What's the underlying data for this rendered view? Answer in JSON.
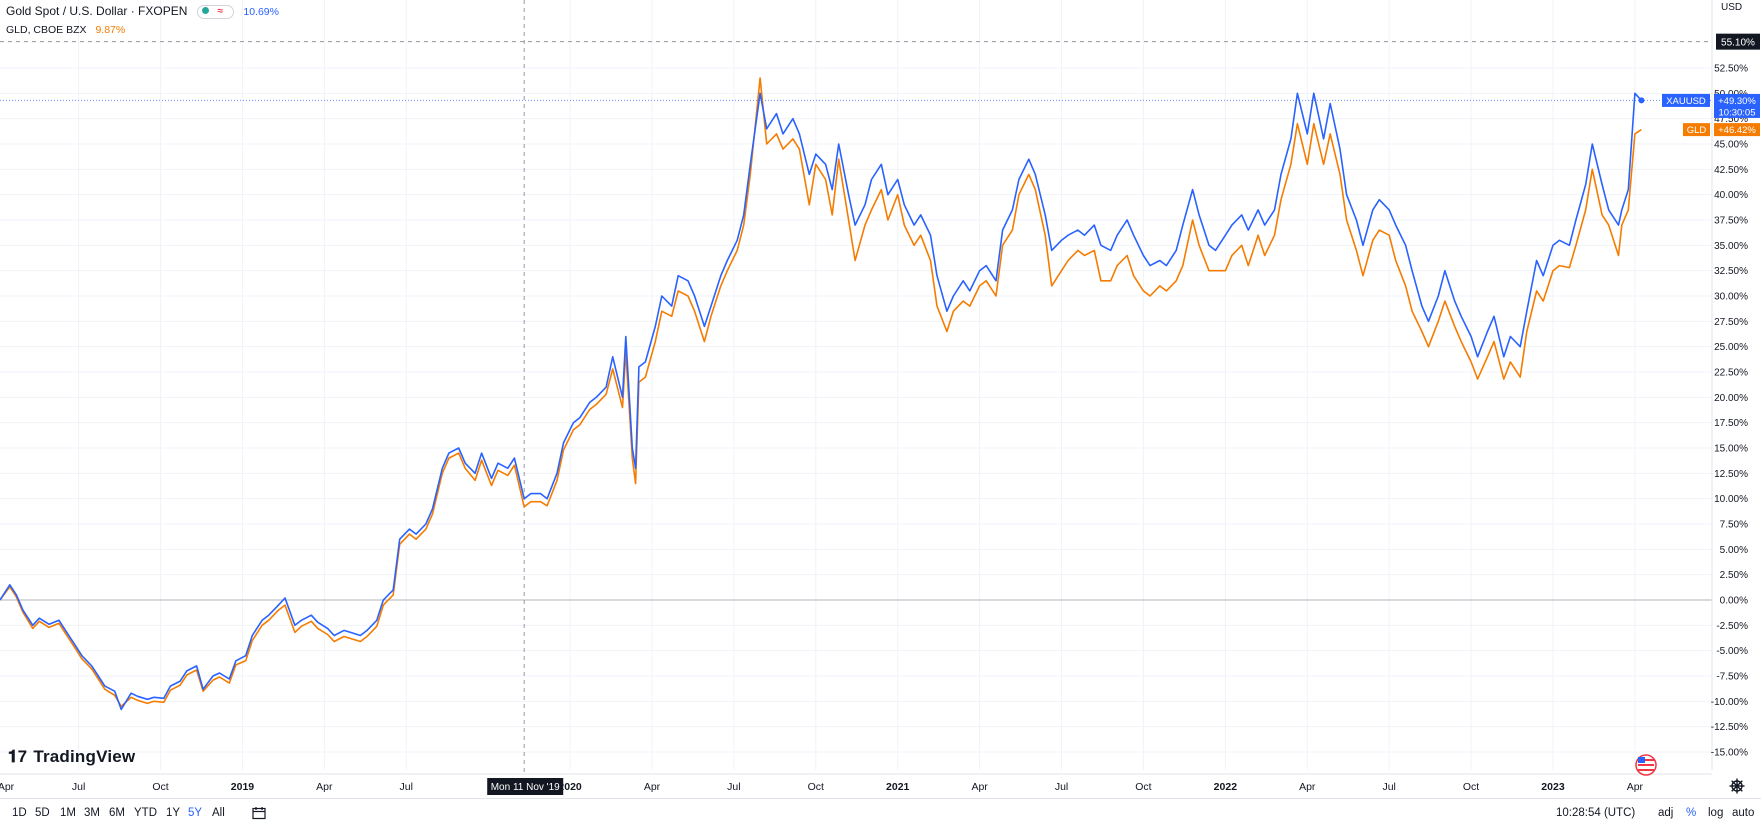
{
  "header": {
    "symbol_title": "Gold Spot / U.S. Dollar · FXOPEN",
    "symbol_change": "10.69%",
    "compare_title": "GLD, CBOE BZX",
    "compare_change": "9.87%",
    "currency": "USD"
  },
  "bottom_bar": {
    "timeframes": [
      "1D",
      "5D",
      "1M",
      "3M",
      "6M",
      "YTD",
      "1Y",
      "5Y",
      "All"
    ],
    "active_timeframe": "5Y",
    "time": "10:28:54 (UTC)",
    "adj": "adj",
    "percent": "%",
    "log": "log",
    "auto": "auto"
  },
  "logo_text": "TradingView",
  "colors": {
    "xauusd": "#2962ff",
    "gld": "#f57c00",
    "grid": "#f0f3fa",
    "zero_line": "#b2b5be"
  },
  "chart_data": {
    "type": "line",
    "y_unit": "%",
    "ylim": [
      -16.5,
      57.5
    ],
    "y_ticks": [
      "55.10%",
      "52.50%",
      "50.00%",
      "47.50%",
      "45.00%",
      "42.50%",
      "40.00%",
      "37.50%",
      "35.00%",
      "32.50%",
      "30.00%",
      "27.50%",
      "25.00%",
      "22.50%",
      "20.00%",
      "17.50%",
      "15.00%",
      "12.50%",
      "10.00%",
      "7.50%",
      "5.00%",
      "2.50%",
      "0.00%",
      "-2.50%",
      "-5.00%",
      "-7.50%",
      "-10.00%",
      "-12.50%",
      "-15.00%"
    ],
    "y_tick_values": [
      55.1,
      52.5,
      50,
      47.5,
      45,
      42.5,
      40,
      37.5,
      35,
      32.5,
      30,
      27.5,
      25,
      22.5,
      20,
      17.5,
      15,
      12.5,
      10,
      7.5,
      5,
      2.5,
      0,
      -2.5,
      -5,
      -7.5,
      -10,
      -12.5,
      -15
    ],
    "x_range": [
      2018.26,
      2023.29
    ],
    "x_ticks": [
      {
        "label": "Apr",
        "x": 2018.25
      },
      {
        "label": "Jul",
        "x": 2018.5
      },
      {
        "label": "Oct",
        "x": 2018.75
      },
      {
        "label": "2019",
        "x": 2019.0
      },
      {
        "label": "Apr",
        "x": 2019.25
      },
      {
        "label": "Jul",
        "x": 2019.5
      },
      {
        "label": "2020",
        "x": 2020.0
      },
      {
        "label": "Apr",
        "x": 2020.25
      },
      {
        "label": "Jul",
        "x": 2020.5
      },
      {
        "label": "Oct",
        "x": 2020.75
      },
      {
        "label": "2021",
        "x": 2021.0
      },
      {
        "label": "Apr",
        "x": 2021.25
      },
      {
        "label": "Jul",
        "x": 2021.5
      },
      {
        "label": "Oct",
        "x": 2021.75
      },
      {
        "label": "2022",
        "x": 2022.0
      },
      {
        "label": "Apr",
        "x": 2022.25
      },
      {
        "label": "Jul",
        "x": 2022.5
      },
      {
        "label": "Oct",
        "x": 2022.75
      },
      {
        "label": "2023",
        "x": 2023.0
      },
      {
        "label": "Apr",
        "x": 2023.25
      }
    ],
    "crosshair": {
      "x": 2019.86,
      "y": 55.1,
      "x_label": "Mon 11 Nov '19",
      "y_label": "55.10%"
    },
    "last_values": [
      {
        "name": "XAUUSD",
        "value": "+49.30%",
        "y": 49.3,
        "sub": "10:30:05"
      },
      {
        "name": "GLD",
        "value": "+46.42%",
        "y": 46.42
      }
    ],
    "series": [
      {
        "name": "XAUUSD",
        "x": [
          2018.26,
          2018.29,
          2018.31,
          2018.33,
          2018.36,
          2018.38,
          2018.41,
          2018.44,
          2018.46,
          2018.49,
          2018.51,
          2018.54,
          2018.56,
          2018.58,
          2018.61,
          2018.63,
          2018.66,
          2018.68,
          2018.71,
          2018.73,
          2018.76,
          2018.78,
          2018.81,
          2018.83,
          2018.86,
          2018.88,
          2018.91,
          2018.93,
          2018.96,
          2018.98,
          2019.01,
          2019.03,
          2019.06,
          2019.08,
          2019.11,
          2019.13,
          2019.16,
          2019.18,
          2019.21,
          2019.23,
          2019.26,
          2019.28,
          2019.31,
          2019.33,
          2019.36,
          2019.38,
          2019.41,
          2019.43,
          2019.46,
          2019.48,
          2019.51,
          2019.53,
          2019.56,
          2019.58,
          2019.61,
          2019.63,
          2019.66,
          2019.68,
          2019.71,
          2019.73,
          2019.76,
          2019.78,
          2019.81,
          2019.83,
          2019.86,
          2019.88,
          2019.91,
          2019.93,
          2019.96,
          2019.98,
          2020.01,
          2020.03,
          2020.06,
          2020.08,
          2020.11,
          2020.13,
          2020.16,
          2020.17,
          2020.19,
          2020.2,
          2020.21,
          2020.23,
          2020.26,
          2020.28,
          2020.31,
          2020.33,
          2020.36,
          2020.38,
          2020.41,
          2020.43,
          2020.46,
          2020.48,
          2020.51,
          2020.53,
          2020.55,
          2020.58,
          2020.6,
          2020.63,
          2020.65,
          2020.68,
          2020.7,
          2020.73,
          2020.75,
          2020.78,
          2020.8,
          2020.82,
          2020.85,
          2020.87,
          2020.9,
          2020.92,
          2020.95,
          2020.97,
          2021.0,
          2021.02,
          2021.05,
          2021.07,
          2021.1,
          2021.12,
          2021.15,
          2021.17,
          2021.2,
          2021.22,
          2021.25,
          2021.27,
          2021.3,
          2021.32,
          2021.35,
          2021.37,
          2021.4,
          2021.42,
          2021.45,
          2021.47,
          2021.5,
          2021.52,
          2021.55,
          2021.57,
          2021.6,
          2021.62,
          2021.65,
          2021.67,
          2021.7,
          2021.72,
          2021.75,
          2021.77,
          2021.8,
          2021.82,
          2021.85,
          2021.87,
          2021.9,
          2021.92,
          2021.95,
          2021.97,
          2022.0,
          2022.02,
          2022.05,
          2022.07,
          2022.1,
          2022.12,
          2022.15,
          2022.17,
          2022.2,
          2022.22,
          2022.25,
          2022.27,
          2022.3,
          2022.32,
          2022.35,
          2022.37,
          2022.4,
          2022.42,
          2022.45,
          2022.47,
          2022.5,
          2022.52,
          2022.55,
          2022.57,
          2022.6,
          2022.62,
          2022.65,
          2022.67,
          2022.7,
          2022.72,
          2022.75,
          2022.77,
          2022.8,
          2022.82,
          2022.85,
          2022.87,
          2022.9,
          2022.92,
          2022.95,
          2022.97,
          2023.0,
          2023.02,
          2023.05,
          2023.07,
          2023.1,
          2023.12,
          2023.15,
          2023.17,
          2023.2,
          2023.21,
          2023.23,
          2023.25,
          2023.27
        ],
        "values": [
          0.0,
          1.5,
          0.5,
          -1.0,
          -2.5,
          -1.8,
          -2.4,
          -2.0,
          -3.0,
          -4.5,
          -5.5,
          -6.5,
          -7.5,
          -8.5,
          -9.0,
          -10.8,
          -9.2,
          -9.5,
          -9.8,
          -9.6,
          -9.7,
          -8.5,
          -8.0,
          -7.0,
          -6.5,
          -8.8,
          -7.5,
          -7.2,
          -7.8,
          -6.0,
          -5.5,
          -3.5,
          -2.0,
          -1.5,
          -0.5,
          0.2,
          -2.5,
          -2.0,
          -1.5,
          -2.2,
          -2.8,
          -3.5,
          -3.0,
          -3.2,
          -3.5,
          -3.0,
          -2.0,
          0.0,
          1.0,
          6.0,
          7.0,
          6.5,
          7.5,
          9.0,
          13.0,
          14.5,
          15.0,
          13.5,
          12.5,
          14.5,
          12.0,
          13.5,
          13.0,
          14.0,
          10.0,
          10.5,
          10.5,
          10.0,
          12.5,
          15.5,
          17.5,
          18.0,
          19.5,
          20.0,
          21.0,
          24.0,
          20.0,
          26.0,
          15.0,
          13.0,
          23.0,
          23.5,
          27.0,
          30.0,
          29.0,
          32.0,
          31.5,
          30.0,
          27.0,
          29.0,
          32.0,
          33.5,
          35.5,
          38.0,
          43.0,
          50.0,
          46.5,
          48.0,
          46.0,
          47.5,
          46.0,
          42.0,
          44.0,
          43.0,
          40.5,
          45.0,
          40.0,
          37.0,
          39.0,
          41.5,
          43.0,
          40.0,
          41.5,
          39.0,
          37.0,
          38.0,
          36.0,
          32.0,
          28.5,
          30.0,
          31.5,
          30.5,
          32.5,
          33.0,
          31.5,
          36.5,
          38.5,
          41.5,
          43.5,
          42.0,
          38.0,
          34.5,
          35.5,
          36.0,
          36.5,
          36.0,
          37.0,
          35.0,
          34.5,
          36.0,
          37.5,
          36.0,
          34.0,
          33.0,
          33.5,
          33.0,
          34.5,
          37.0,
          40.5,
          38.0,
          35.0,
          34.5,
          36.0,
          37.0,
          38.0,
          36.5,
          38.5,
          37.0,
          38.5,
          42.0,
          45.5,
          50.0,
          46.0,
          50.0,
          45.5,
          49.0,
          44.5,
          40.0,
          37.5,
          35.0,
          38.5,
          39.5,
          38.5,
          37.0,
          35.0,
          32.5,
          29.0,
          27.5,
          30.0,
          32.5,
          29.5,
          28.0,
          26.0,
          24.0,
          26.5,
          28.0,
          24.0,
          26.0,
          25.0,
          28.5,
          33.5,
          32.0,
          35.0,
          35.5,
          35.0,
          37.5,
          41.0,
          45.0,
          41.0,
          38.5,
          37.0,
          38.5,
          40.5,
          50.0,
          49.3
        ],
        "color": "#2962ff"
      },
      {
        "name": "GLD",
        "x": [
          2018.26,
          2018.29,
          2018.31,
          2018.33,
          2018.36,
          2018.38,
          2018.41,
          2018.44,
          2018.46,
          2018.49,
          2018.51,
          2018.54,
          2018.56,
          2018.58,
          2018.61,
          2018.63,
          2018.66,
          2018.68,
          2018.71,
          2018.73,
          2018.76,
          2018.78,
          2018.81,
          2018.83,
          2018.86,
          2018.88,
          2018.91,
          2018.93,
          2018.96,
          2018.98,
          2019.01,
          2019.03,
          2019.06,
          2019.08,
          2019.11,
          2019.13,
          2019.16,
          2019.18,
          2019.21,
          2019.23,
          2019.26,
          2019.28,
          2019.31,
          2019.33,
          2019.36,
          2019.38,
          2019.41,
          2019.43,
          2019.46,
          2019.48,
          2019.51,
          2019.53,
          2019.56,
          2019.58,
          2019.61,
          2019.63,
          2019.66,
          2019.68,
          2019.71,
          2019.73,
          2019.76,
          2019.78,
          2019.81,
          2019.83,
          2019.86,
          2019.88,
          2019.91,
          2019.93,
          2019.96,
          2019.98,
          2020.01,
          2020.03,
          2020.06,
          2020.08,
          2020.11,
          2020.13,
          2020.16,
          2020.17,
          2020.19,
          2020.2,
          2020.21,
          2020.23,
          2020.26,
          2020.28,
          2020.31,
          2020.33,
          2020.36,
          2020.38,
          2020.41,
          2020.43,
          2020.46,
          2020.48,
          2020.51,
          2020.53,
          2020.55,
          2020.58,
          2020.6,
          2020.63,
          2020.65,
          2020.68,
          2020.7,
          2020.73,
          2020.75,
          2020.78,
          2020.8,
          2020.82,
          2020.85,
          2020.87,
          2020.9,
          2020.92,
          2020.95,
          2020.97,
          2021.0,
          2021.02,
          2021.05,
          2021.07,
          2021.1,
          2021.12,
          2021.15,
          2021.17,
          2021.2,
          2021.22,
          2021.25,
          2021.27,
          2021.3,
          2021.32,
          2021.35,
          2021.37,
          2021.4,
          2021.42,
          2021.45,
          2021.47,
          2021.5,
          2021.52,
          2021.55,
          2021.57,
          2021.6,
          2021.62,
          2021.65,
          2021.67,
          2021.7,
          2021.72,
          2021.75,
          2021.77,
          2021.8,
          2021.82,
          2021.85,
          2021.87,
          2021.9,
          2021.92,
          2021.95,
          2021.97,
          2022.0,
          2022.02,
          2022.05,
          2022.07,
          2022.1,
          2022.12,
          2022.15,
          2022.17,
          2022.2,
          2022.22,
          2022.25,
          2022.27,
          2022.3,
          2022.32,
          2022.35,
          2022.37,
          2022.4,
          2022.42,
          2022.45,
          2022.47,
          2022.5,
          2022.52,
          2022.55,
          2022.57,
          2022.6,
          2022.62,
          2022.65,
          2022.67,
          2022.7,
          2022.72,
          2022.75,
          2022.77,
          2022.8,
          2022.82,
          2022.85,
          2022.87,
          2022.9,
          2022.92,
          2022.95,
          2022.97,
          2023.0,
          2023.02,
          2023.05,
          2023.07,
          2023.1,
          2023.12,
          2023.15,
          2023.17,
          2023.2,
          2023.21,
          2023.23,
          2023.25,
          2023.27
        ],
        "values": [
          0.0,
          1.3,
          0.3,
          -1.2,
          -2.8,
          -2.1,
          -2.7,
          -2.3,
          -3.3,
          -4.8,
          -5.8,
          -6.8,
          -7.8,
          -8.8,
          -9.4,
          -10.5,
          -9.6,
          -9.9,
          -10.2,
          -10.0,
          -10.1,
          -8.9,
          -8.4,
          -7.4,
          -6.9,
          -9.0,
          -7.9,
          -7.6,
          -8.2,
          -6.4,
          -6.0,
          -4.0,
          -2.5,
          -2.0,
          -1.0,
          -0.5,
          -3.2,
          -2.6,
          -2.1,
          -2.8,
          -3.4,
          -4.1,
          -3.6,
          -3.8,
          -4.1,
          -3.6,
          -2.6,
          -0.5,
          0.5,
          5.5,
          6.5,
          6.0,
          7.0,
          8.5,
          12.5,
          14.0,
          14.5,
          13.0,
          11.8,
          13.8,
          11.3,
          12.8,
          12.3,
          13.3,
          9.2,
          9.7,
          9.7,
          9.3,
          11.8,
          14.8,
          16.8,
          17.3,
          18.8,
          19.3,
          20.3,
          22.8,
          19.0,
          24.5,
          14.0,
          11.5,
          21.5,
          22.0,
          25.5,
          28.5,
          28.0,
          30.5,
          30.0,
          28.5,
          25.5,
          28.0,
          31.0,
          32.5,
          34.5,
          37.0,
          42.0,
          51.5,
          45.0,
          46.0,
          44.5,
          45.5,
          44.5,
          39.0,
          43.0,
          41.5,
          38.0,
          43.5,
          37.5,
          33.5,
          37.0,
          38.5,
          40.5,
          37.5,
          40.0,
          37.0,
          35.0,
          36.0,
          33.5,
          29.0,
          26.5,
          28.5,
          29.5,
          29.0,
          31.0,
          31.5,
          30.0,
          35.0,
          36.5,
          40.0,
          42.0,
          40.5,
          36.0,
          31.0,
          32.5,
          33.5,
          34.5,
          34.0,
          34.5,
          31.5,
          31.5,
          33.0,
          34.0,
          32.0,
          30.5,
          30.0,
          31.0,
          30.5,
          31.5,
          33.0,
          37.5,
          35.0,
          32.5,
          32.5,
          32.5,
          34.0,
          35.0,
          33.0,
          36.0,
          34.0,
          36.0,
          39.5,
          43.0,
          47.0,
          43.0,
          47.0,
          43.0,
          46.0,
          42.0,
          37.5,
          34.5,
          32.0,
          35.5,
          36.5,
          36.0,
          33.5,
          31.0,
          28.5,
          26.5,
          25.0,
          27.5,
          29.5,
          27.0,
          25.5,
          23.5,
          21.8,
          24.0,
          25.5,
          21.8,
          23.5,
          22.0,
          26.5,
          30.5,
          29.5,
          32.5,
          33.0,
          32.8,
          35.0,
          38.5,
          42.5,
          38.0,
          37.0,
          34.0,
          37.0,
          38.5,
          46.0,
          46.42
        ],
        "color": "#f57c00"
      }
    ]
  }
}
